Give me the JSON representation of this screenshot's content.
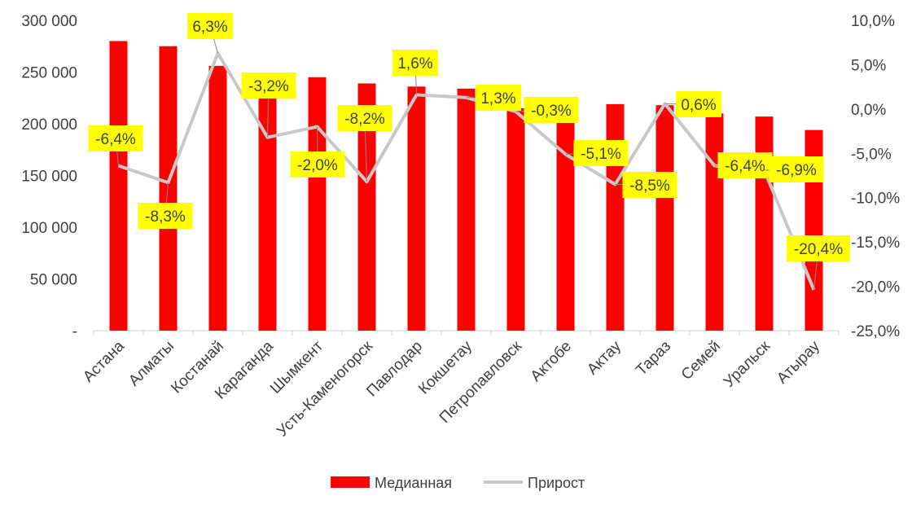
{
  "chart_data": {
    "type": "bar+line",
    "categories": [
      "Астана",
      "Алматы",
      "Костанай",
      "Караганда",
      "Шымкент",
      "Усть-Каменогорск",
      "Павлодар",
      "Кокшетау",
      "Петропавловск",
      "Актобе",
      "Актау",
      "Тараз",
      "Семей",
      "Уральск",
      "Атырау"
    ],
    "series": [
      {
        "name": "Медианная",
        "type": "bar",
        "axis": "left",
        "color": "#ff0000",
        "values": [
          280000,
          275000,
          256000,
          228000,
          245000,
          239000,
          236000,
          234000,
          215000,
          205000,
          219000,
          218000,
          210000,
          207000,
          194000
        ]
      },
      {
        "name": "Прирост",
        "type": "line",
        "axis": "right",
        "color": "#c8c8c8",
        "values": [
          -6.4,
          -8.3,
          6.3,
          -3.2,
          -2.0,
          -8.2,
          1.6,
          1.3,
          -0.3,
          -5.1,
          -8.5,
          0.6,
          -6.4,
          -6.9,
          -20.4
        ],
        "labels": [
          "-6,4%",
          "-8,3%",
          "6,3%",
          "-3,2%",
          "-2,0%",
          "-8,2%",
          "1,6%",
          "1,3%",
          "-0,3%",
          "-5,1%",
          "-8,5%",
          "0,6%",
          "-6,4%",
          "-6,9%",
          "-20,4%"
        ]
      }
    ],
    "left_axis": {
      "ylim": [
        0,
        300000
      ],
      "ticks": [
        "-",
        "50 000",
        "100 000",
        "150 000",
        "200 000",
        "250 000",
        "300 000"
      ]
    },
    "right_axis": {
      "ylim": [
        -25,
        10
      ],
      "ticks": [
        "-25,0%",
        "-20,0%",
        "-15,0%",
        "-10,0%",
        "-5,0%",
        "0,0%",
        "5,0%",
        "10,0%"
      ]
    },
    "label_bg": "#ffff00",
    "grid": false,
    "legend": "bottom"
  }
}
